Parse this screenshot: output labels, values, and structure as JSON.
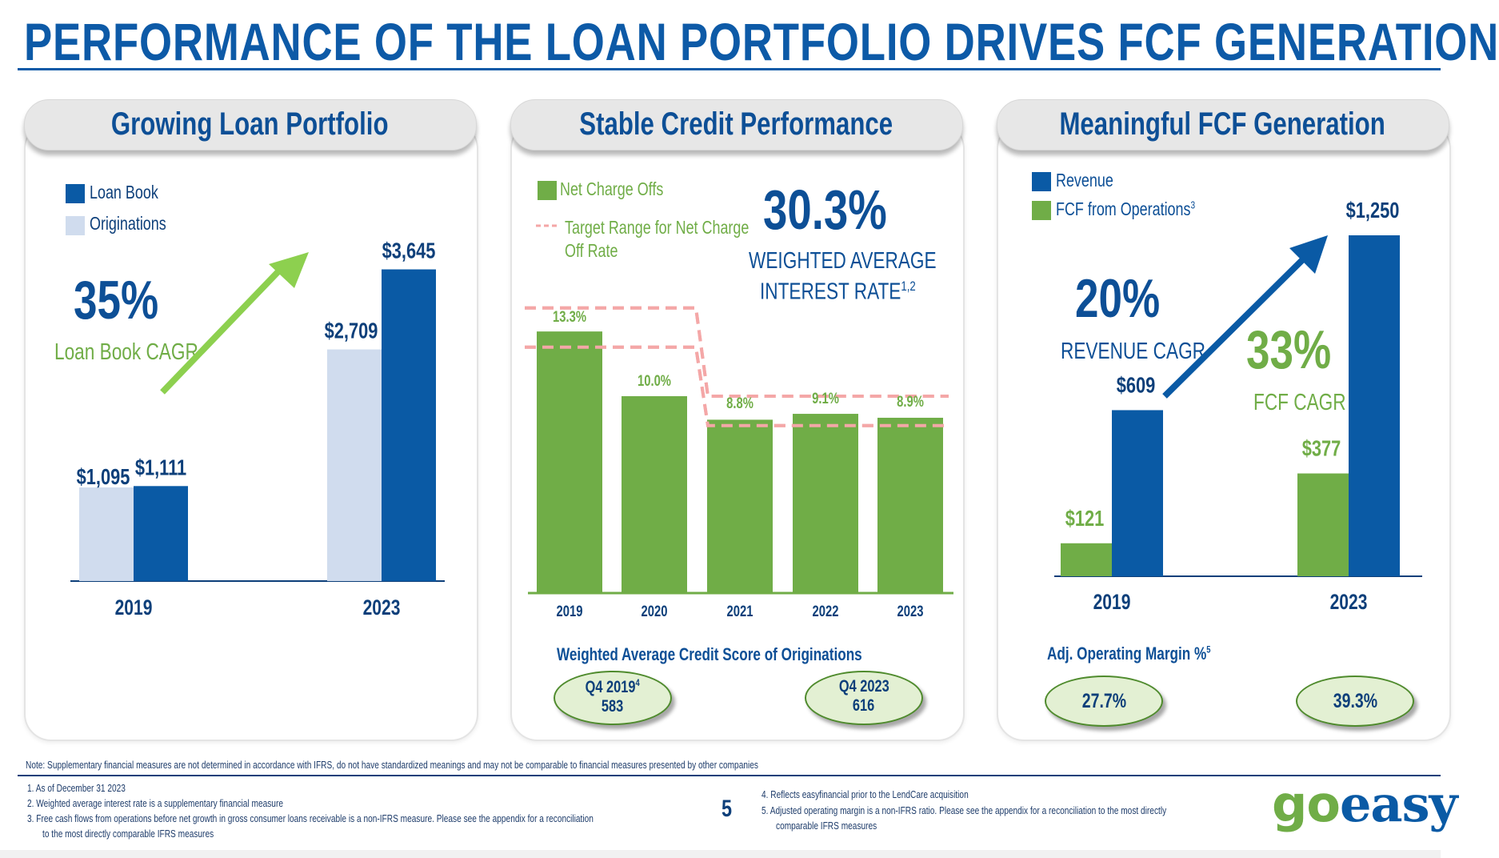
{
  "title": "PERFORMANCE OF THE LOAN PORTFOLIO DRIVES FCF GENERATION",
  "colors": {
    "blue": "#0a5aa5",
    "light_blue": "#d0dcee",
    "green": "#70ad47",
    "navy": "#0d4f96",
    "target_pink": "#f4a7a7"
  },
  "panels": {
    "loan": {
      "tab": "Growing Loan Portfolio",
      "legend": [
        "Loan Book",
        "Originations"
      ],
      "cagr_value": "35%",
      "cagr_label": "Loan Book CAGR"
    },
    "credit": {
      "tab": "Stable Credit Performance",
      "legend": [
        "Net Charge Offs",
        "Target Range for Net Charge Off Rate"
      ],
      "rate_value": "30.3%",
      "rate_label_line1": "WEIGHTED AVERAGE",
      "rate_label_line2": "INTEREST RATE",
      "rate_label_sup": "1,2",
      "score_heading": "Weighted Average Credit Score of Originations",
      "score_q4_2019_label": "Q4 2019",
      "score_q4_2019_sup": "4",
      "score_q4_2019_value": "583",
      "score_q4_2023_label": "Q4 2023",
      "score_q4_2023_value": "616"
    },
    "fcf": {
      "tab": "Meaningful FCF Generation",
      "legend": [
        "Revenue",
        "FCF from Operations"
      ],
      "legend_sup": "3",
      "revenue_cagr_value": "20%",
      "revenue_cagr_label": "REVENUE CAGR",
      "fcf_cagr_value": "33%",
      "fcf_cagr_label": "FCF CAGR",
      "margin_heading": "Adj. Operating Margin %",
      "margin_sup": "5",
      "margin_2019": "27.7%",
      "margin_2023": "39.3%"
    }
  },
  "chart_data": [
    {
      "type": "bar",
      "categories": [
        "2019",
        "2023"
      ],
      "series": [
        {
          "name": "Originations",
          "values": [
            1095,
            2709
          ],
          "labels": [
            "$1,095",
            "$2,709"
          ]
        },
        {
          "name": "Loan Book",
          "values": [
            1111,
            3645
          ],
          "labels": [
            "$1,111",
            "$3,645"
          ]
        }
      ],
      "ylim": [
        0,
        3800
      ]
    },
    {
      "type": "bar",
      "categories": [
        "2019",
        "2020",
        "2021",
        "2022",
        "2023"
      ],
      "series": [
        {
          "name": "Net Charge Offs",
          "values": [
            13.3,
            10.0,
            8.8,
            9.1,
            8.9
          ],
          "labels": [
            "13.3%",
            "10.0%",
            "8.8%",
            "9.1%",
            "8.9%"
          ]
        }
      ],
      "target_range": {
        "name": "Target Range for Net Charge Off Rate",
        "upper": [
          14.5,
          14.5,
          10.0,
          10.0,
          10.0
        ],
        "lower": [
          12.5,
          12.5,
          8.5,
          8.5,
          8.5
        ]
      },
      "ylim": [
        0,
        16
      ]
    },
    {
      "type": "bar",
      "categories": [
        "2019",
        "2023"
      ],
      "series": [
        {
          "name": "FCF from Operations",
          "values": [
            121,
            377
          ],
          "labels": [
            "$121",
            "$377"
          ]
        },
        {
          "name": "Revenue",
          "values": [
            609,
            1250
          ],
          "labels": [
            "$609",
            "$1,250"
          ]
        }
      ],
      "ylim": [
        0,
        1300
      ]
    }
  ],
  "footer": {
    "note": "Note: Supplementary financial measures are not determined in accordance with IFRS, do not have standardized meanings and may not be comparable to financial measures presented by other companies",
    "fn1": "1.   As of December 31 2023",
    "fn2": "2.   Weighted average interest rate is a supplementary  financial measure",
    "fn3a": "3.   Free cash flows from operations before net growth in gross consumer loans receivable is a non-IFRS measure. Please see the appendix  for a reconciliation",
    "fn3b": "to the most directly comparable IFRS measures",
    "fn4": "4.   Reflects easyfinancial prior to the LendCare acquisition",
    "fn5a": "5.   Adjusted operating margin is a non-IFRS ratio. Please see the appendix  for a reconciliation to the most directly",
    "fn5b": "comparable IFRS measures",
    "page_number": "5",
    "logo_go": "go",
    "logo_easy": "easy"
  }
}
